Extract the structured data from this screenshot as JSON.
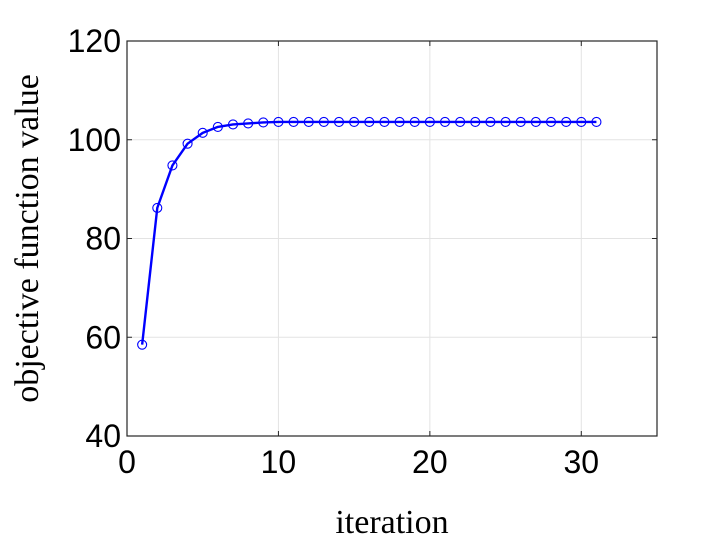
{
  "chart_data": {
    "type": "line",
    "xlabel": "iteration",
    "ylabel": "objective function value",
    "xlim": [
      0,
      35
    ],
    "ylim": [
      40,
      120
    ],
    "xticks": [
      0,
      10,
      20,
      30
    ],
    "yticks": [
      40,
      60,
      80,
      100,
      120
    ],
    "xtick_labels": [
      "0",
      "10",
      "20",
      "30"
    ],
    "ytick_labels": [
      "40",
      "60",
      "80",
      "100",
      "120"
    ],
    "grid": true,
    "marker": "circle",
    "line_color": "#0000ff",
    "series": [
      {
        "x": [
          1,
          2,
          3,
          4,
          5,
          6,
          7,
          8,
          9,
          10,
          11,
          12,
          13,
          14,
          15,
          16,
          17,
          18,
          19,
          20,
          21,
          22,
          23,
          24,
          25,
          26,
          27,
          28,
          29,
          30,
          31
        ],
        "values": [
          58.5,
          86.2,
          94.8,
          99.2,
          101.4,
          102.6,
          103.1,
          103.3,
          103.5,
          103.6,
          103.6,
          103.6,
          103.6,
          103.6,
          103.6,
          103.6,
          103.6,
          103.6,
          103.6,
          103.6,
          103.6,
          103.6,
          103.6,
          103.6,
          103.6,
          103.6,
          103.6,
          103.6,
          103.6,
          103.6,
          103.6
        ]
      }
    ]
  }
}
